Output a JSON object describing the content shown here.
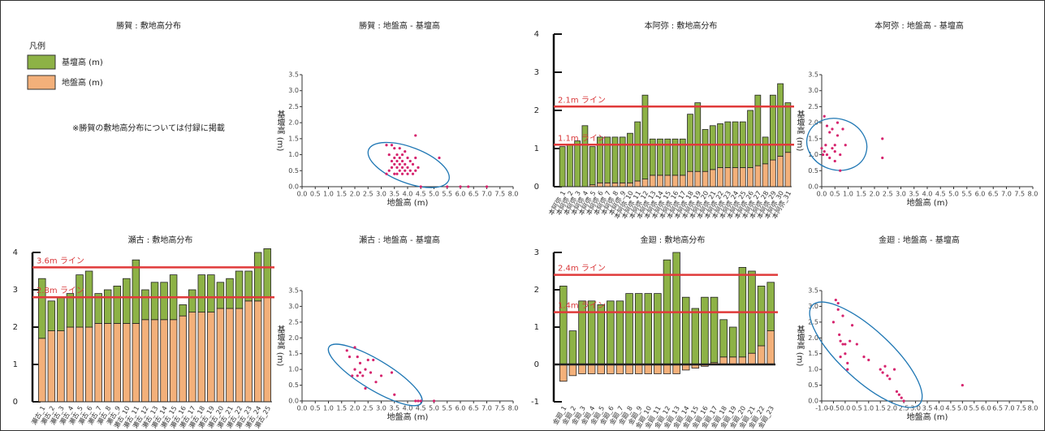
{
  "chart_data": [
    {
      "type": "legend",
      "title": "勝賀 : 敷地高分布",
      "legend_title": "凡例",
      "series": [
        {
          "name": "基壇高 (m)",
          "color": "#8db246"
        },
        {
          "name": "地盤高 (m)",
          "color": "#f3b07a"
        }
      ],
      "note": "※勝賀の敷地高分布については付録に掲載"
    },
    {
      "type": "scatter",
      "title": "勝賀 : 地盤高 - 基壇高",
      "xlabel": "地盤高 (m)",
      "ylabel": "基壇高 (m)",
      "color": "#d6246e",
      "ellipse_color": "#1f77b4",
      "x": [
        3.2,
        3.2,
        3.3,
        3.3,
        3.4,
        3.4,
        3.4,
        3.5,
        3.5,
        3.5,
        3.5,
        3.6,
        3.6,
        3.6,
        3.6,
        3.7,
        3.7,
        3.7,
        3.7,
        3.8,
        3.8,
        3.8,
        3.8,
        3.9,
        3.9,
        3.9,
        4.0,
        4.0,
        4.0,
        4.1,
        4.1,
        4.2,
        4.2,
        4.3,
        4.3,
        4.4,
        4.5,
        4.3,
        5.2,
        5.5,
        6.0,
        6.3,
        7.0
      ],
      "values": [
        0.4,
        1.3,
        0.5,
        1.0,
        0.6,
        0.8,
        1.3,
        0.4,
        0.7,
        0.9,
        1.2,
        0.4,
        0.6,
        0.8,
        1.0,
        0.5,
        0.7,
        0.9,
        1.2,
        0.4,
        0.6,
        0.8,
        1.0,
        0.5,
        0.7,
        1.1,
        0.4,
        0.6,
        0.9,
        0.5,
        0.8,
        0.4,
        0.7,
        0.5,
        0.9,
        0.6,
        0.0,
        1.6,
        0.9,
        0.0,
        0.0,
        0.0,
        0.0
      ],
      "xlim": [
        0,
        8
      ],
      "ylim": [
        0,
        3.5
      ],
      "xticks": [
        {
          "value": 0,
          "label": "0.0"
        },
        {
          "value": 0.5,
          "label": "0.5"
        },
        {
          "value": 1,
          "label": "1.0"
        },
        {
          "value": 1.5,
          "label": "1.5"
        },
        {
          "value": 2,
          "label": "2.0"
        },
        {
          "value": 2.5,
          "label": "2.5"
        },
        {
          "value": 3,
          "label": "3.0"
        },
        {
          "value": 3.5,
          "label": "3.5"
        },
        {
          "value": 4,
          "label": "4.0"
        },
        {
          "value": 4.5,
          "label": "4.5"
        },
        {
          "value": 5,
          "label": "5.0"
        },
        {
          "value": 5.5,
          "label": "5.5"
        },
        {
          "value": 6,
          "label": "6.0"
        },
        {
          "value": 6.5,
          "label": "6.5"
        },
        {
          "value": 7,
          "label": "7.0"
        },
        {
          "value": 7.5,
          "label": "7.5"
        },
        {
          "value": 8,
          "label": "8.0"
        }
      ],
      "yticks": [
        {
          "value": 0,
          "label": "0.0"
        },
        {
          "value": 0.5,
          "label": "0.5"
        },
        {
          "value": 1,
          "label": "1.0"
        },
        {
          "value": 1.5,
          "label": "1.5"
        },
        {
          "value": 2,
          "label": "2.0"
        },
        {
          "value": 2.5,
          "label": "2.5"
        },
        {
          "value": 3,
          "label": "3.0"
        },
        {
          "value": 3.5,
          "label": "3.5"
        }
      ]
    },
    {
      "type": "bar",
      "title": "本阿弥 : 敷地高分布",
      "categories": [
        "本阿弥_1",
        "本阿弥_2",
        "本阿弥_3",
        "本阿弥_4",
        "本阿弥_5",
        "本阿弥_6",
        "本阿弥_7",
        "本阿弥_8",
        "本阿弥_9",
        "本阿弥_10",
        "本阿弥_11",
        "本阿弥_12",
        "本阿弥_13",
        "本阿弥_14",
        "本阿弥_15",
        "本阿弥_16",
        "本阿弥_17",
        "本阿弥_18",
        "本阿弥_19",
        "本阿弥_20",
        "本阿弥_21",
        "本阿弥_22",
        "本阿弥_23",
        "本阿弥_24",
        "本阿弥_25",
        "本阿弥_26",
        "本阿弥_27",
        "本阿弥_28",
        "本阿弥_29",
        "本阿弥_30",
        "本阿弥_31"
      ],
      "series": [
        {
          "color": "#f3b07a",
          "values": [
            0,
            0,
            0,
            0,
            0.05,
            0.1,
            0.1,
            0.1,
            0.1,
            0.1,
            0.15,
            0.2,
            0.3,
            0.3,
            0.3,
            0.3,
            0.3,
            0.4,
            0.4,
            0.4,
            0.45,
            0.5,
            0.5,
            0.5,
            0.5,
            0.5,
            0.55,
            0.6,
            0.7,
            0.8,
            0.9
          ]
        },
        {
          "color": "#8db246",
          "values": [
            1.05,
            1.1,
            1.2,
            1.6,
            1.0,
            1.2,
            1.2,
            1.2,
            1.2,
            1.3,
            1.55,
            2.2,
            0.95,
            0.95,
            0.95,
            0.95,
            0.95,
            1.5,
            1.8,
            1.1,
            1.15,
            1.15,
            1.2,
            1.2,
            1.2,
            1.5,
            1.85,
            0.7,
            1.7,
            1.9,
            1.3
          ]
        }
      ],
      "ylim": [
        0,
        4
      ],
      "yticks": [
        0,
        1,
        2,
        3,
        4
      ],
      "reference_lines": [
        {
          "value": 2.1,
          "label": "2.1m ライン"
        },
        {
          "value": 1.1,
          "label": "1.1m ライン"
        }
      ]
    },
    {
      "type": "scatter",
      "title": "本阿弥 : 地盤高 - 基壇高",
      "xlabel": "地盤高 (m)",
      "ylabel": "基壇高 (m)",
      "color": "#d6246e",
      "ellipse_color": "#1f77b4",
      "x": [
        0.0,
        0.05,
        0.1,
        0.1,
        0.15,
        0.2,
        0.2,
        0.3,
        0.3,
        0.4,
        0.4,
        0.5,
        0.5,
        0.5,
        0.6,
        0.6,
        0.7,
        0.7,
        0.8,
        0.9,
        2.3,
        2.3
      ],
      "values": [
        1.2,
        1.0,
        2.2,
        1.1,
        1.3,
        1.0,
        1.9,
        1.7,
        0.9,
        1.8,
        1.2,
        1.3,
        1.1,
        0.8,
        2.0,
        1.6,
        1.0,
        0.5,
        1.8,
        1.3,
        1.5,
        0.9
      ],
      "xlim": [
        0,
        8
      ],
      "ylim": [
        0,
        3.5
      ],
      "xticks": [
        {
          "value": 0,
          "label": "0.0"
        },
        {
          "value": 0.5,
          "label": "0.5"
        },
        {
          "value": 1,
          "label": "1.0"
        },
        {
          "value": 1.5,
          "label": "1.5"
        },
        {
          "value": 2,
          "label": "2.0"
        },
        {
          "value": 2.5,
          "label": "2.5"
        },
        {
          "value": 3,
          "label": "3.0"
        },
        {
          "value": 3.5,
          "label": "3.5"
        },
        {
          "value": 4,
          "label": "4.0"
        },
        {
          "value": 4.5,
          "label": "4.5"
        },
        {
          "value": 5,
          "label": "5.0"
        },
        {
          "value": 5.5,
          "label": "5.5"
        },
        {
          "value": 6,
          "label": "6.0"
        },
        {
          "value": 6.5,
          "label": "6.5"
        },
        {
          "value": 7,
          "label": "7.0"
        },
        {
          "value": 7.5,
          "label": "7.5"
        },
        {
          "value": 8,
          "label": "8.0"
        }
      ],
      "yticks": [
        {
          "value": 0,
          "label": "0.0"
        },
        {
          "value": 0.5,
          "label": "0.5"
        },
        {
          "value": 1,
          "label": "1.0"
        },
        {
          "value": 1.5,
          "label": "1.5"
        },
        {
          "value": 2,
          "label": "2.0"
        },
        {
          "value": 2.5,
          "label": "2.5"
        },
        {
          "value": 3,
          "label": "3.0"
        },
        {
          "value": 3.5,
          "label": "3.5"
        }
      ]
    },
    {
      "type": "bar",
      "title": "瀬古 : 敷地高分布",
      "categories": [
        "瀬古_1",
        "瀬古_2",
        "瀬古_3",
        "瀬古_4",
        "瀬古_5",
        "瀬古_6",
        "瀬古_7",
        "瀬古_8",
        "瀬古_9",
        "瀬古_10",
        "瀬古_11",
        "瀬古_12",
        "瀬古_13",
        "瀬古_14",
        "瀬古_15",
        "瀬古_16",
        "瀬古_17",
        "瀬古_18",
        "瀬古_19",
        "瀬古_20",
        "瀬古_21",
        "瀬古_22",
        "瀬古_23",
        "瀬古_24",
        "瀬古_25"
      ],
      "series": [
        {
          "color": "#f3b07a",
          "values": [
            1.7,
            1.9,
            1.9,
            2.0,
            2.0,
            2.0,
            2.1,
            2.1,
            2.1,
            2.1,
            2.1,
            2.2,
            2.2,
            2.2,
            2.2,
            2.3,
            2.4,
            2.4,
            2.4,
            2.5,
            2.5,
            2.5,
            2.7,
            2.7,
            2.8
          ]
        },
        {
          "color": "#8db246",
          "values": [
            1.6,
            0.8,
            0.9,
            0.9,
            1.4,
            1.5,
            0.8,
            0.9,
            1.0,
            1.2,
            1.7,
            0.8,
            1.0,
            1.0,
            1.2,
            0.3,
            0.6,
            1.0,
            1.0,
            0.7,
            0.8,
            1.0,
            0.8,
            1.3,
            1.3
          ]
        }
      ],
      "ylim": [
        0,
        4
      ],
      "yticks": [
        0,
        1,
        2,
        3,
        4
      ],
      "reference_lines": [
        {
          "value": 3.6,
          "label": "3.6m ライン"
        },
        {
          "value": 2.8,
          "label": "2.8m ライン"
        }
      ]
    },
    {
      "type": "scatter",
      "title": "瀬古 : 地盤高 - 基壇高",
      "xlabel": "地盤高 (m)",
      "ylabel": "基壇高 (m)",
      "color": "#d6246e",
      "ellipse_color": "#1f77b4",
      "x": [
        1.7,
        1.8,
        1.9,
        2.0,
        2.0,
        2.1,
        2.1,
        2.2,
        2.2,
        2.3,
        2.4,
        2.4,
        2.5,
        2.6,
        2.7,
        2.8,
        3.0,
        3.4,
        3.5,
        4.3,
        4.4,
        4.5,
        5.0
      ],
      "values": [
        1.6,
        1.4,
        0.8,
        1.7,
        1.0,
        1.4,
        0.8,
        1.2,
        0.9,
        0.8,
        1.0,
        0.4,
        1.3,
        0.9,
        1.3,
        0.6,
        0.8,
        0.9,
        0.2,
        0.0,
        0.0,
        0.0,
        0.0
      ],
      "xlim": [
        0,
        8
      ],
      "ylim": [
        0,
        3.5
      ],
      "xticks": [
        {
          "value": 0,
          "label": "0.0"
        },
        {
          "value": 0.5,
          "label": "0.5"
        },
        {
          "value": 1,
          "label": "1.0"
        },
        {
          "value": 1.5,
          "label": "1.5"
        },
        {
          "value": 2,
          "label": "2.0"
        },
        {
          "value": 2.5,
          "label": "2.5"
        },
        {
          "value": 3,
          "label": "3.0"
        },
        {
          "value": 3.5,
          "label": "3.5"
        },
        {
          "value": 4,
          "label": "4.0"
        },
        {
          "value": 4.5,
          "label": "4.5"
        },
        {
          "value": 5,
          "label": "5.0"
        },
        {
          "value": 5.5,
          "label": "5.5"
        },
        {
          "value": 6,
          "label": "6.0"
        },
        {
          "value": 6.5,
          "label": "6.5"
        },
        {
          "value": 7,
          "label": "7.0"
        },
        {
          "value": 7.5,
          "label": "7.5"
        },
        {
          "value": 8,
          "label": "8.0"
        }
      ],
      "yticks": [
        {
          "value": 0,
          "label": "0.0"
        },
        {
          "value": 0.5,
          "label": "0.5"
        },
        {
          "value": 1,
          "label": "1.0"
        },
        {
          "value": 1.5,
          "label": "1.5"
        },
        {
          "value": 2,
          "label": "2.0"
        },
        {
          "value": 2.5,
          "label": "2.5"
        },
        {
          "value": 3,
          "label": "3.0"
        },
        {
          "value": 3.5,
          "label": "3.5"
        }
      ]
    },
    {
      "type": "bar",
      "title": "金廻 : 敷地高分布",
      "categories": [
        "金廻_1",
        "金廻_2",
        "金廻_3",
        "金廻_4",
        "金廻_5",
        "金廻_6",
        "金廻_7",
        "金廻_8",
        "金廻_9",
        "金廻_10",
        "金廻_11",
        "金廻_12",
        "金廻_13",
        "金廻_14",
        "金廻_15",
        "金廻_16",
        "金廻_17",
        "金廻_18",
        "金廻_19",
        "金廻_20",
        "金廻_21",
        "金廻_22",
        "金廻_23"
      ],
      "series": [
        {
          "color": "#f3b07a",
          "values": [
            -0.45,
            -0.3,
            -0.25,
            -0.25,
            -0.25,
            -0.25,
            -0.25,
            -0.25,
            -0.25,
            -0.25,
            -0.25,
            -0.25,
            -0.25,
            -0.15,
            -0.1,
            -0.05,
            0.05,
            0.2,
            0.2,
            0.2,
            0.3,
            0.5,
            0.9
          ]
        },
        {
          "color": "#8db246",
          "values": [
            2.1,
            0.9,
            1.7,
            1.7,
            1.6,
            1.7,
            1.7,
            1.9,
            1.9,
            1.9,
            1.9,
            2.8,
            3.0,
            1.8,
            1.5,
            1.8,
            1.75,
            1.0,
            0.8,
            2.4,
            2.2,
            1.6,
            1.3
          ]
        }
      ],
      "ylim": [
        -1,
        3
      ],
      "yticks": [
        -1,
        0,
        1,
        2,
        3
      ],
      "reference_lines": [
        {
          "value": 2.4,
          "label": "2.4m ライン"
        },
        {
          "value": 1.4,
          "label": "1.4m ライン"
        }
      ]
    },
    {
      "type": "scatter",
      "title": "金廻 : 地盤高 - 基壇高",
      "xlabel": "地盤高 (m)",
      "ylabel": "基壇高 (m)",
      "color": "#d6246e",
      "ellipse_color": "#1f77b4",
      "x": [
        -0.4,
        -0.3,
        -0.3,
        -0.25,
        -0.2,
        -0.2,
        -0.1,
        -0.1,
        0.0,
        0.0,
        0.1,
        0.1,
        0.3,
        0.2,
        0.5,
        0.8,
        1.0,
        1.5,
        1.6,
        1.7,
        1.8,
        1.9,
        2.1,
        2.2,
        2.3,
        2.4,
        2.5,
        -0.5,
        5.0
      ],
      "values": [
        3.2,
        3.1,
        2.9,
        2.1,
        1.9,
        1.4,
        2.7,
        1.8,
        1.8,
        1.5,
        1.2,
        1.0,
        2.4,
        1.9,
        1.8,
        1.4,
        1.3,
        1.0,
        0.9,
        1.1,
        0.8,
        0.7,
        1.0,
        0.3,
        0.2,
        0.1,
        0.0,
        2.5,
        0.5
      ],
      "xlim": [
        -1,
        8
      ],
      "ylim": [
        0,
        3.5
      ],
      "xticks": [
        {
          "value": -1,
          "label": "-1.0"
        },
        {
          "value": -0.5,
          "label": "-0.5"
        },
        {
          "value": 0,
          "label": "0.0"
        },
        {
          "value": 0.5,
          "label": "0.5"
        },
        {
          "value": 1,
          "label": "1.0"
        },
        {
          "value": 1.5,
          "label": "1.5"
        },
        {
          "value": 2,
          "label": "2.0"
        },
        {
          "value": 2.5,
          "label": "2.5"
        },
        {
          "value": 3,
          "label": "3.0"
        },
        {
          "value": 3.5,
          "label": "3.5"
        },
        {
          "value": 4,
          "label": "4.0"
        },
        {
          "value": 4.5,
          "label": "4.5"
        },
        {
          "value": 5,
          "label": "5.0"
        },
        {
          "value": 5.5,
          "label": "5.5"
        },
        {
          "value": 6,
          "label": "6.0"
        },
        {
          "value": 6.5,
          "label": "6.5"
        },
        {
          "value": 7,
          "label": "7.0"
        },
        {
          "value": 7.5,
          "label": "7.5"
        },
        {
          "value": 8,
          "label": "8.0"
        }
      ],
      "yticks": [
        {
          "value": 0,
          "label": "0.0"
        },
        {
          "value": 0.5,
          "label": "0.5"
        },
        {
          "value": 1,
          "label": "1.0"
        },
        {
          "value": 1.5,
          "label": "1.5"
        },
        {
          "value": 2,
          "label": "2.0"
        },
        {
          "value": 2.5,
          "label": "2.5"
        },
        {
          "value": 3,
          "label": "3.0"
        },
        {
          "value": 3.5,
          "label": "3.5"
        }
      ]
    }
  ]
}
